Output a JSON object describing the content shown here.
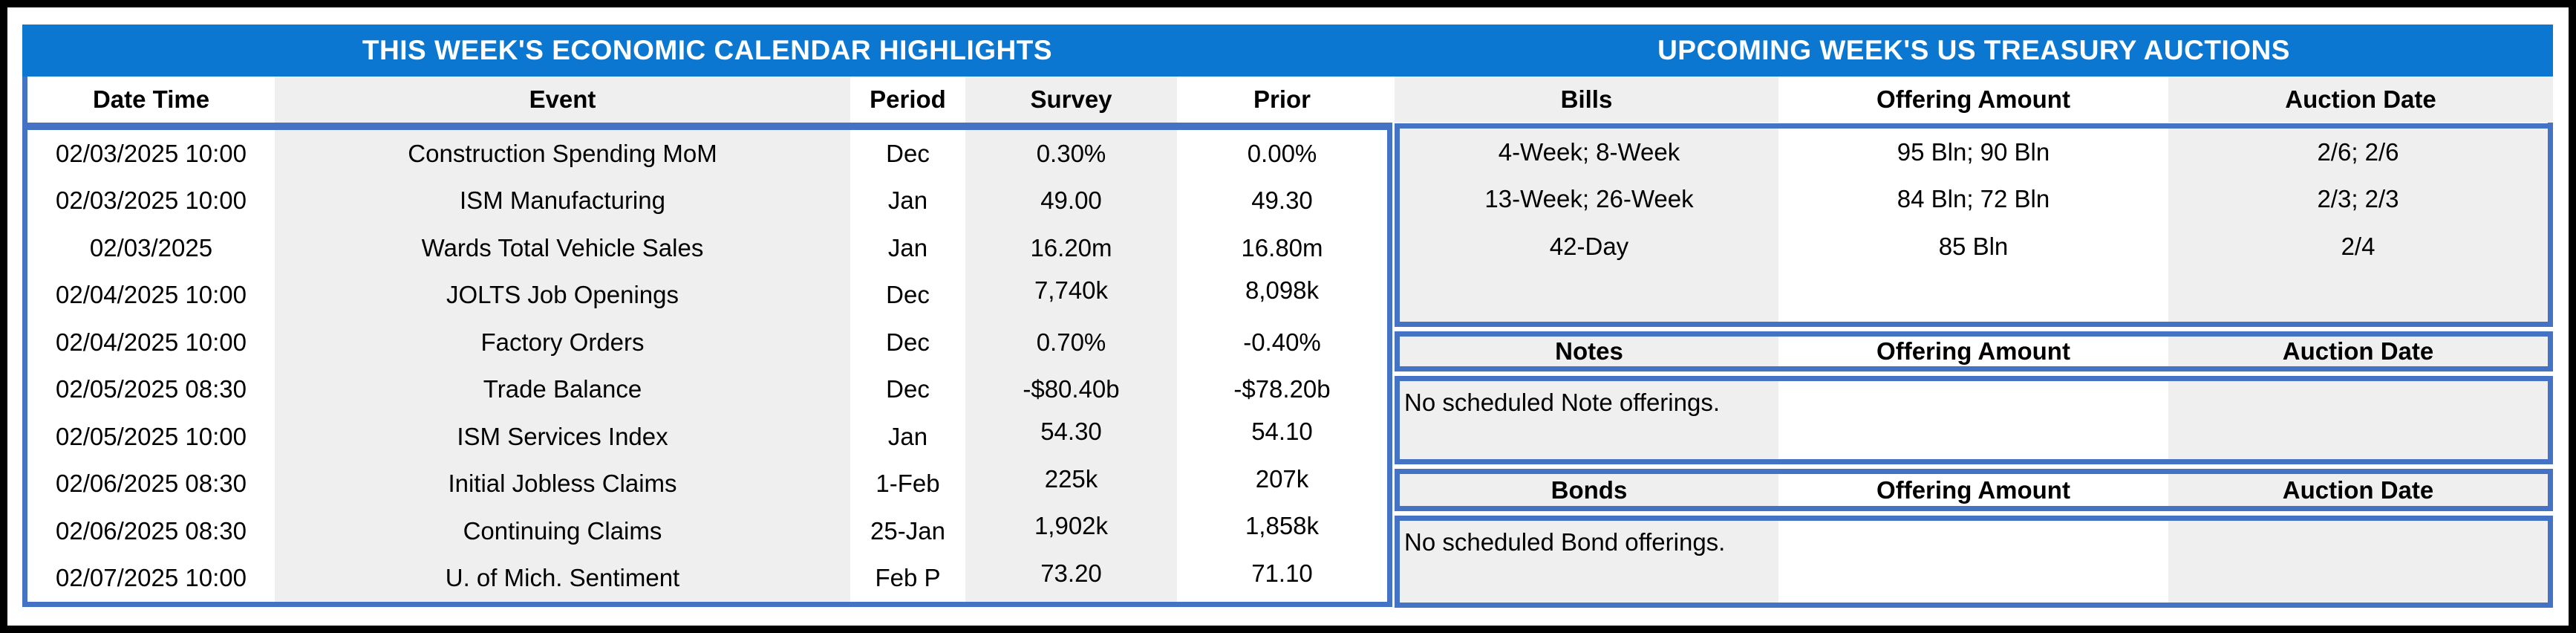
{
  "titles": {
    "left": "THIS WEEK'S ECONOMIC CALENDAR HIGHLIGHTS",
    "right": "UPCOMING WEEK'S US TREASURY AUCTIONS"
  },
  "calendar": {
    "headers": [
      "Date Time",
      "Event",
      "Period",
      "Survey",
      "Prior"
    ],
    "rows": [
      {
        "date_time": "02/03/2025 10:00",
        "event": "Construction Spending MoM",
        "period": "Dec",
        "survey": "0.30%",
        "prior": "0.00%"
      },
      {
        "date_time": "02/03/2025 10:00",
        "event": "ISM Manufacturing",
        "period": "Jan",
        "survey": "49.00",
        "prior": "49.30"
      },
      {
        "date_time": "02/03/2025",
        "event": "Wards Total Vehicle Sales",
        "period": "Jan",
        "survey": "16.20m",
        "prior": "16.80m"
      },
      {
        "date_time": "02/04/2025 10:00",
        "event": "JOLTS Job Openings",
        "period": "Dec",
        "survey": "7,740k",
        "prior": "8,098k"
      },
      {
        "date_time": "02/04/2025 10:00",
        "event": "Factory Orders",
        "period": "Dec",
        "survey": "0.70%",
        "prior": "-0.40%"
      },
      {
        "date_time": "02/05/2025 08:30",
        "event": "Trade Balance",
        "period": "Dec",
        "survey": "-$80.40b",
        "prior": "-$78.20b"
      },
      {
        "date_time": "02/05/2025 10:00",
        "event": "ISM Services Index",
        "period": "Jan",
        "survey": "54.30",
        "prior": "54.10"
      },
      {
        "date_time": "02/06/2025 08:30",
        "event": "Initial Jobless Claims",
        "period": "1-Feb",
        "survey": "225k",
        "prior": "207k"
      },
      {
        "date_time": "02/06/2025 08:30",
        "event": "Continuing Claims",
        "period": "25-Jan",
        "survey": "1,902k",
        "prior": "1,858k"
      },
      {
        "date_time": "02/07/2025 10:00",
        "event": "U. of Mich. Sentiment",
        "period": "Feb P",
        "survey": "73.20",
        "prior": "71.10"
      }
    ]
  },
  "auctions": {
    "bills": {
      "headers": [
        "Bills",
        "Offering Amount",
        "Auction Date"
      ],
      "rows": [
        {
          "security": "4-Week; 8-Week",
          "offering_amount": "95 Bln; 90 Bln",
          "auction_date": "2/6; 2/6"
        },
        {
          "security": "13-Week; 26-Week",
          "offering_amount": "84 Bln; 72 Bln",
          "auction_date": "2/3; 2/3"
        },
        {
          "security": "42-Day",
          "offering_amount": "85 Bln",
          "auction_date": "2/4"
        }
      ]
    },
    "notes": {
      "headers": [
        "Notes",
        "Offering Amount",
        "Auction Date"
      ],
      "message": "No scheduled Note offerings."
    },
    "bonds": {
      "headers": [
        "Bonds",
        "Offering Amount",
        "Auction Date"
      ],
      "message": "No scheduled Bond offerings."
    }
  },
  "colors": {
    "title_bar": "#0b77d0",
    "table_border": "#4472c4",
    "stripe": "#efefef"
  }
}
